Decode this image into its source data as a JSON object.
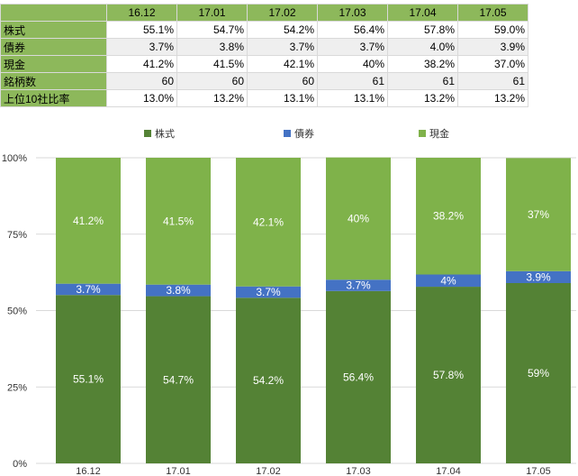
{
  "table": {
    "periods": [
      "16.12",
      "17.01",
      "17.02",
      "17.03",
      "17.04",
      "17.05"
    ],
    "rows": [
      {
        "label": "株式",
        "values": [
          "55.1%",
          "54.7%",
          "54.2%",
          "56.4%",
          "57.8%",
          "59.0%"
        ]
      },
      {
        "label": "債券",
        "values": [
          "3.7%",
          "3.8%",
          "3.7%",
          "3.7%",
          "4.0%",
          "3.9%"
        ]
      },
      {
        "label": "現金",
        "values": [
          "41.2%",
          "41.5%",
          "42.1%",
          "40%",
          "38.2%",
          "37.0%"
        ]
      },
      {
        "label": "銘柄数",
        "values": [
          "60",
          "60",
          "60",
          "61",
          "61",
          "61"
        ]
      },
      {
        "label": "上位10社比率",
        "values": [
          "13.0%",
          "13.2%",
          "13.1%",
          "13.1%",
          "13.2%",
          "13.2%"
        ]
      }
    ]
  },
  "chart_data": {
    "type": "bar",
    "stacked": true,
    "categories": [
      "16.12",
      "17.01",
      "17.02",
      "17.03",
      "17.04",
      "17.05"
    ],
    "series": [
      {
        "name": "株式",
        "color": "#548235",
        "values": [
          55.1,
          54.7,
          54.2,
          56.4,
          57.8,
          59
        ],
        "labels": [
          "55.1%",
          "54.7%",
          "54.2%",
          "56.4%",
          "57.8%",
          "59%"
        ]
      },
      {
        "name": "債券",
        "color": "#4472c4",
        "values": [
          3.7,
          3.8,
          3.7,
          3.7,
          4,
          3.9
        ],
        "labels": [
          "3.7%",
          "3.8%",
          "3.7%",
          "3.7%",
          "4%",
          "3.9%"
        ]
      },
      {
        "name": "現金",
        "color": "#7fb24a",
        "values": [
          41.2,
          41.5,
          42.1,
          40,
          38.2,
          37
        ],
        "labels": [
          "41.2%",
          "41.5%",
          "42.1%",
          "40%",
          "38.2%",
          "37%"
        ]
      }
    ],
    "ylim": [
      0,
      100
    ],
    "yticks": [
      0,
      25,
      50,
      75,
      100
    ],
    "ytick_labels": [
      "0%",
      "25%",
      "50%",
      "75%",
      "100%"
    ],
    "legend_position": "top",
    "grid": true
  }
}
